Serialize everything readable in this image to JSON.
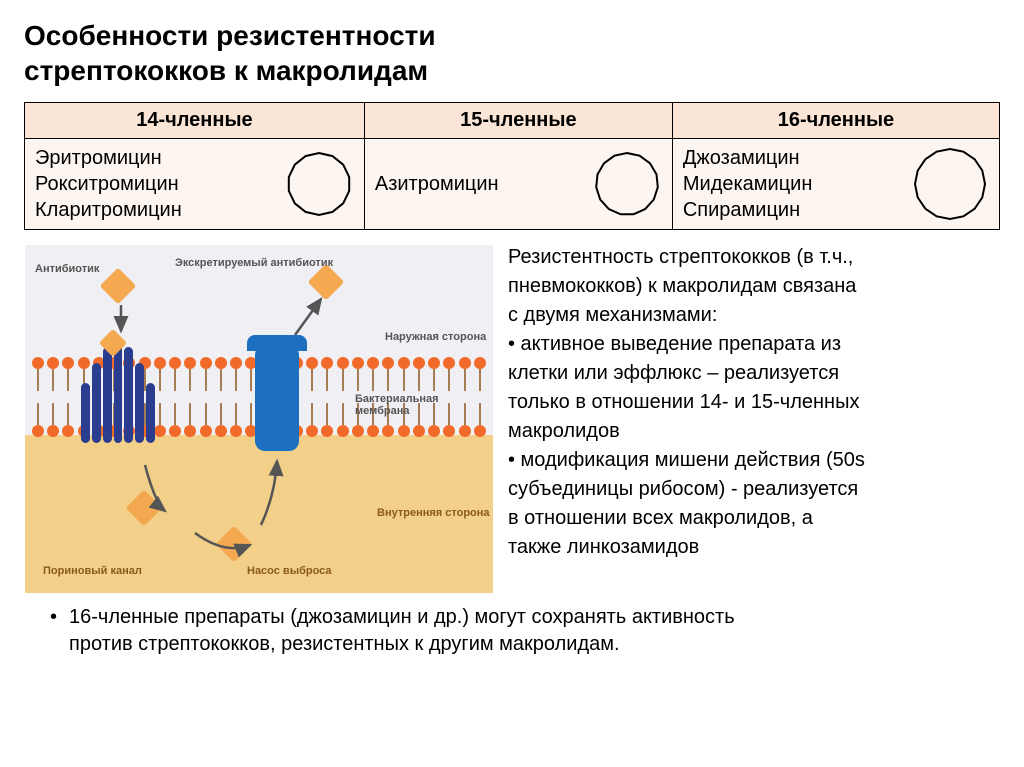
{
  "title_line1": "Особенности резистентности",
  "title_line2": "стрептококков к макролидам",
  "table": {
    "headers": [
      "14-членные",
      "15-членные",
      "16-членные"
    ],
    "rows": [
      {
        "drugs": [
          "Эритромицин",
          "Рокситромицин",
          "Кларитромицин"
        ],
        "ring_sides": 14
      },
      {
        "drugs": [
          "Азитромицин"
        ],
        "ring_sides": 15
      },
      {
        "drugs": [
          "Джозамицин",
          "Мидекамицин",
          "Спирамицин"
        ],
        "ring_sides": 16
      }
    ],
    "header_bg": "#fbe5d6",
    "cell_bg": "#fdf5ef",
    "border_color": "#000000",
    "font_size": 20
  },
  "diagram": {
    "labels": {
      "antibiotic": "Антибиотик",
      "excreted": "Экскретируемый антибиотик",
      "outer": "Наружная сторона",
      "membrane": "Бактериальная мембрана",
      "inner": "Внутренняя сторона",
      "porin": "Пориновый канал",
      "pump": "Насос выброса"
    },
    "colors": {
      "porin": "#2a3d8f",
      "pump": "#1d6fbf",
      "lipid_head": "#f26a2a",
      "lipid_tail": "#a67c52",
      "inner_zone": "#f3d08a",
      "antibiotic": "#f4a850",
      "outer_bg": "#f0eff3"
    },
    "lipid_count": 30,
    "porin_tubes": [
      60,
      80,
      96,
      100,
      96,
      80,
      60
    ]
  },
  "side_text": {
    "intro1": "Резистентность стрептококков (в т.ч.,",
    "intro2": "пневмококков) к макролидам связана",
    "intro3": "с двумя механизмами:",
    "b1_1": "• активное выведение препарата из",
    "b1_2": "клетки или эффлюкс – реализуется",
    "b1_3": "только в отношении 14- и 15-членных",
    "b1_4": "макролидов",
    "b2_1": "• модификация мишени действия (50s",
    "b2_2": "субъединицы рибосом) - реализуется",
    "b2_3": "в отношении всех макролидов, а",
    "b2_4": "также линкозамидов"
  },
  "bottom": {
    "bullet": "•",
    "line1": "16-членные  препараты (джозамицин и др.) могут сохранять активность",
    "line2": "против стрептококков, резистентных к другим макролидам."
  }
}
